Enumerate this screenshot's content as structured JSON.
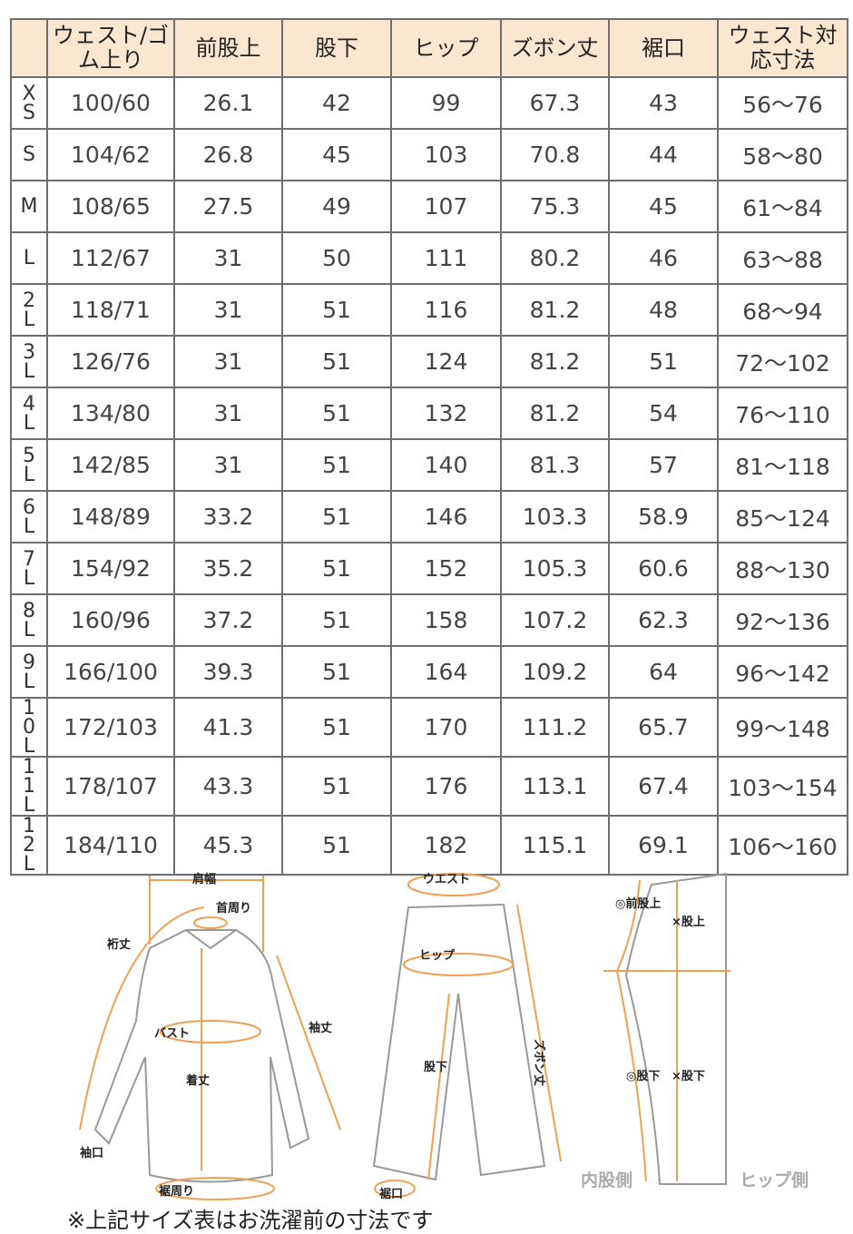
{
  "table": {
    "headers": [
      "",
      "ウェスト/ゴム上り",
      "前股上",
      "股下",
      "ヒップ",
      "ズボン丈",
      "裾口",
      "ウェスト対応寸法"
    ],
    "rows": [
      [
        "XS",
        "100/60",
        "26.1",
        "42",
        "99",
        "67.3",
        "43",
        "56～76"
      ],
      [
        "S",
        "104/62",
        "26.8",
        "45",
        "103",
        "70.8",
        "44",
        "58～80"
      ],
      [
        "M",
        "108/65",
        "27.5",
        "49",
        "107",
        "75.3",
        "45",
        "61～84"
      ],
      [
        "L",
        "112/67",
        "31",
        "50",
        "111",
        "80.2",
        "46",
        "63～88"
      ],
      [
        "2L",
        "118/71",
        "31",
        "51",
        "116",
        "81.2",
        "48",
        "68～94"
      ],
      [
        "3L",
        "126/76",
        "31",
        "51",
        "124",
        "81.2",
        "51",
        "72～102"
      ],
      [
        "4L",
        "134/80",
        "31",
        "51",
        "132",
        "81.2",
        "54",
        "76～110"
      ],
      [
        "5L",
        "142/85",
        "31",
        "51",
        "140",
        "81.3",
        "57",
        "81～118"
      ],
      [
        "6L",
        "148/89",
        "33.2",
        "51",
        "146",
        "103.3",
        "58.9",
        "85～124"
      ],
      [
        "7L",
        "154/92",
        "35.2",
        "51",
        "152",
        "105.3",
        "60.6",
        "88～130"
      ],
      [
        "8L",
        "160/96",
        "37.2",
        "51",
        "158",
        "107.2",
        "62.3",
        "92～136"
      ],
      [
        "9L",
        "166/100",
        "39.3",
        "51",
        "164",
        "109.2",
        "64",
        "96～142"
      ],
      [
        "10L",
        "172/103",
        "41.3",
        "51",
        "170",
        "111.2",
        "65.7",
        "99～148"
      ],
      [
        "11L",
        "178/107",
        "43.3",
        "51",
        "176",
        "113.1",
        "67.4",
        "103～154"
      ],
      [
        "12L",
        "184/110",
        "45.3",
        "51",
        "182",
        "115.1",
        "69.1",
        "106～160"
      ]
    ]
  },
  "diagram": {
    "shirt": {
      "shoulder": "肩幅",
      "neck": "首周り",
      "yuki": "裄丈",
      "bust": "バスト",
      "sleeve": "袖丈",
      "length": "着丈",
      "cuff": "袖口",
      "hem": "裾周り"
    },
    "pants": {
      "waist": "ウエスト",
      "hip": "ヒップ",
      "inseam": "股下",
      "length": "ズボン丈",
      "hem": "裾口"
    },
    "side": {
      "front_rise": "◎前股上",
      "rise": "×股上",
      "inseam_ok": "◎股下",
      "inseam_ng": "×股下",
      "inner": "内股側",
      "hip_side": "ヒップ側"
    }
  },
  "note": "※上記サイズ表はお洗濯前の寸法です",
  "colors": {
    "header_bg": "#fbe6d0",
    "accent": "#f0a050",
    "border": "#6e6e6e"
  }
}
